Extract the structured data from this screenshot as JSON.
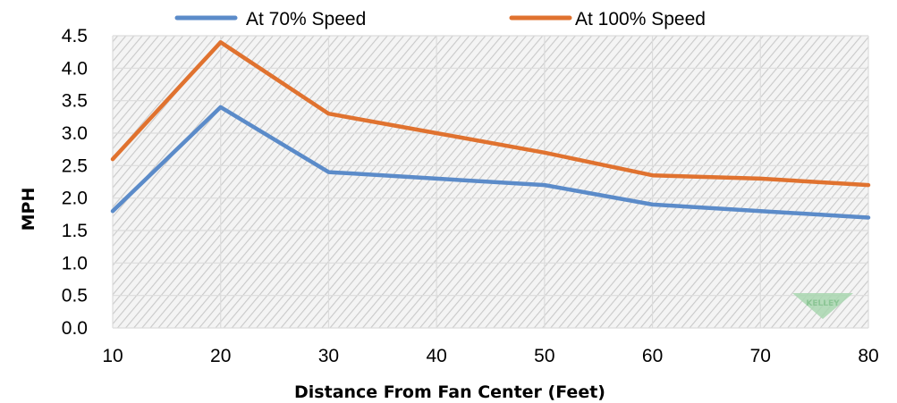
{
  "chart_data": {
    "type": "line",
    "x": [
      10,
      20,
      30,
      40,
      50,
      60,
      70,
      80
    ],
    "series": [
      {
        "name": "At 70% Speed",
        "color": "#5b8bc9",
        "values": [
          1.8,
          3.4,
          2.4,
          2.3,
          2.2,
          1.9,
          1.8,
          1.7
        ]
      },
      {
        "name": "At 100% Speed",
        "color": "#e0722f",
        "values": [
          2.6,
          4.4,
          3.3,
          3.0,
          2.7,
          2.35,
          2.3,
          2.2
        ]
      }
    ],
    "xlabel": "Distance From Fan Center (Feet)",
    "ylabel": "MPH",
    "xlim": [
      10,
      80
    ],
    "ylim": [
      0,
      4.5
    ],
    "xticks": [
      "10",
      "20",
      "30",
      "40",
      "50",
      "60",
      "70",
      "80"
    ],
    "yticks": [
      "0.0",
      "0.5",
      "1.0",
      "1.5",
      "2.0",
      "2.5",
      "3.0",
      "3.5",
      "4.0",
      "4.5"
    ],
    "grid": true,
    "legend_position": "top",
    "background": "hatched"
  },
  "watermark": {
    "text": "KELLEY",
    "color": "#7bbf86"
  }
}
